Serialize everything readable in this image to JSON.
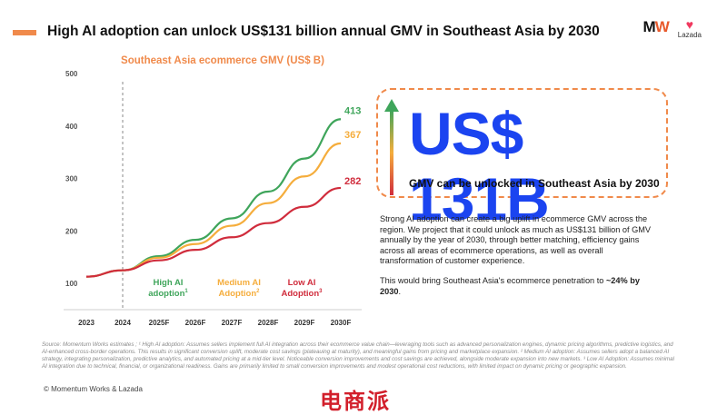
{
  "headline": "High AI adoption can unlock US$131 billion annual GMV in Southeast Asia by 2030",
  "logos": {
    "mw": "MW",
    "lazada": "Lazada"
  },
  "chart_data": {
    "type": "line",
    "title": "Southeast Asia ecommerce GMV (US$ B)",
    "categories": [
      "2023",
      "2024",
      "2025F",
      "2026F",
      "2027F",
      "2028F",
      "2029F",
      "2030F"
    ],
    "ylim": [
      50,
      500
    ],
    "yticks": [
      "100",
      "200",
      "300",
      "400",
      "500"
    ],
    "grid": false,
    "series": [
      {
        "name": "High AI adoption",
        "sup": "1",
        "color": "#3fa55b",
        "values": [
          113,
          125,
          152,
          183,
          224,
          275,
          338,
          413
        ],
        "end_label": "413"
      },
      {
        "name": "Medium AI Adoption",
        "sup": "2",
        "color": "#f5ad3c",
        "values": [
          113,
          125,
          149,
          175,
          210,
          253,
          304,
          367
        ],
        "end_label": "367"
      },
      {
        "name": "Low AI Adoption",
        "sup": "3",
        "color": "#d02c3c",
        "values": [
          113,
          125,
          144,
          164,
          188,
          215,
          246,
          282
        ],
        "end_label": "282"
      }
    ]
  },
  "callout": {
    "value": "US$ 131B",
    "subtitle": "GMV can be unlocked in Southeast Asia by 2030",
    "colors": {
      "border": "#f08a4b",
      "value": "#1b44f0",
      "arrow_top": "#3fa55b",
      "arrow_bottom": "#d02c3c"
    }
  },
  "description": {
    "p1": "Strong AI adoption can create a big uplift in ecommerce GMV across the region. We project that it could unlock as much as US$131 billion of GMV annually by the year of 2030, through better matching, efficiency gains across all areas of ecommerce operations, as well as overall transformation of customer experience.",
    "p2_prefix": "This would bring Southeast Asia's ecommerce penetration to ",
    "p2_bold": "~24% by 2030",
    "p2_suffix": "."
  },
  "source": "Source: Momentum Works estimates ; ¹ High AI adoption: Assumes sellers implement full AI integration across their ecommerce value chain—leveraging tools such as advanced personalization engines, dynamic pricing algorithms, predictive logistics, and AI-enhanced cross-border operations. This results in significant conversion uplift, moderate cost savings (plateauing at maturity), and meaningful gains from pricing and marketplace expansion. ² Medium AI adoption: Assumes sellers adopt a balanced AI strategy, integrating personalization, predictive analytics, and automated pricing at a mid-tier level. Noticeable conversion improvements and cost savings are achieved, alongside moderate expansion into new markets. ³ Low AI Adoption: Assumes minimal AI integration due to technical, financial, or organizational readiness. Gains are primarily limited to small conversion improvements and modest operational cost reductions, with limited impact on dynamic pricing or geographic expansion.",
  "copyright": "© Momentum Works & Lazada",
  "watermark": "电商派"
}
